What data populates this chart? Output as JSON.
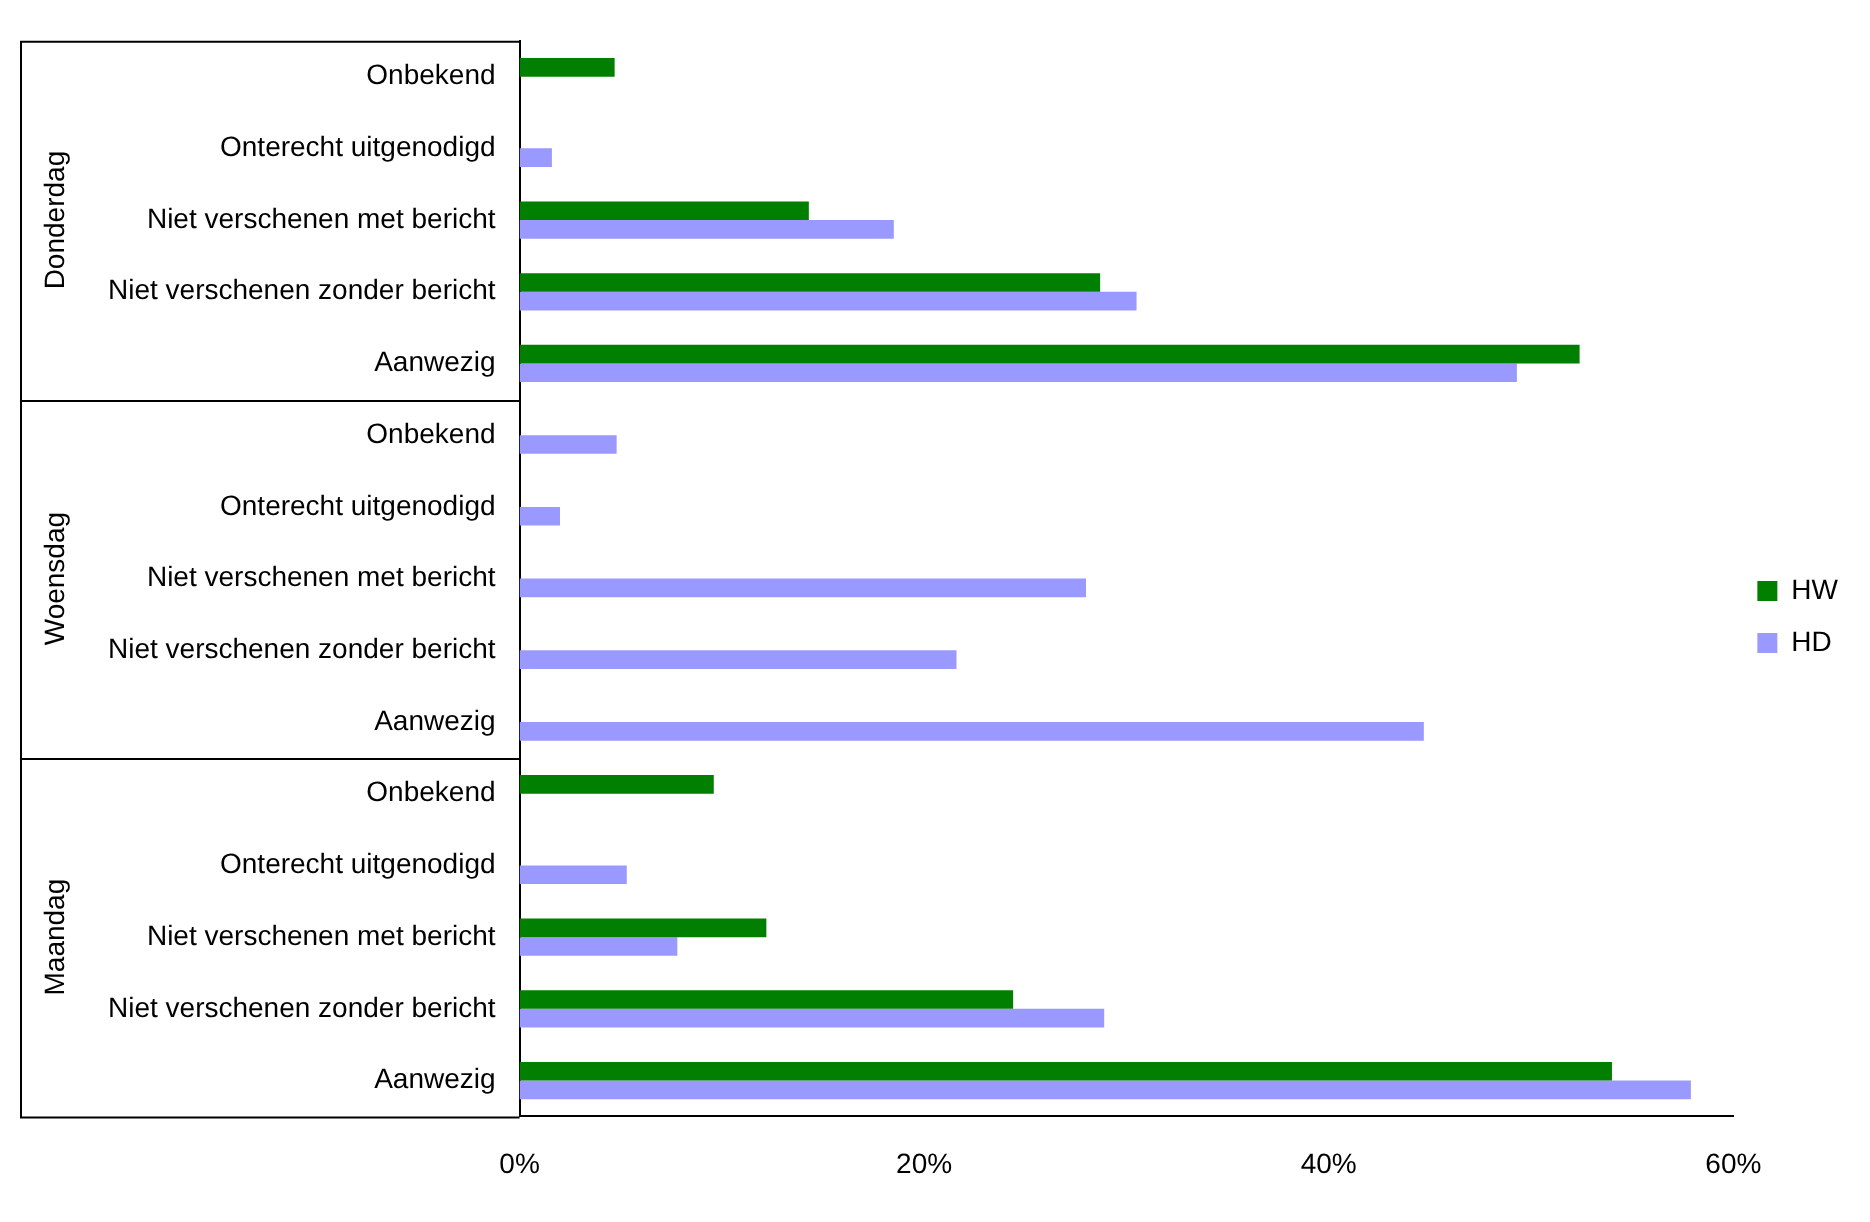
{
  "chart_data": {
    "type": "bar",
    "orientation": "horizontal",
    "categories": [
      "Onbekend",
      "Onterecht uitgenodigd",
      "Niet verschenen met bericht",
      "Niet verschenen zonder bericht",
      "Aanwezig",
      "Onbekend",
      "Onterecht uitgenodigd",
      "Niet verschenen met bericht",
      "Niet verschenen zonder bericht",
      "Aanwezig",
      "Onbekend",
      "Onterecht uitgenodigd",
      "Niet verschenen met bericht",
      "Niet verschenen zonder bericht",
      "Aanwezig"
    ],
    "series": [
      {
        "name": "HW",
        "color": "#007f00",
        "values": [
          4.7,
          null,
          14.3,
          28.7,
          52.4,
          null,
          null,
          null,
          null,
          null,
          9.6,
          null,
          12.2,
          24.4,
          54.0
        ]
      },
      {
        "name": "HD",
        "color": "#9999ff",
        "values": [
          null,
          1.6,
          18.5,
          30.5,
          49.3,
          4.8,
          2.0,
          28.0,
          21.6,
          44.7,
          null,
          5.3,
          7.8,
          28.9,
          57.9
        ]
      }
    ],
    "xlim": [
      0,
      60
    ],
    "xticks": [
      {
        "value": 0,
        "label": "0%"
      },
      {
        "value": 20,
        "label": "20%"
      },
      {
        "value": 40,
        "label": "40%"
      },
      {
        "value": 60,
        "label": "60%"
      }
    ],
    "annotations": [
      "Donderdag",
      "Woensdag",
      "Maandag"
    ],
    "grid": false,
    "legend": "right"
  }
}
